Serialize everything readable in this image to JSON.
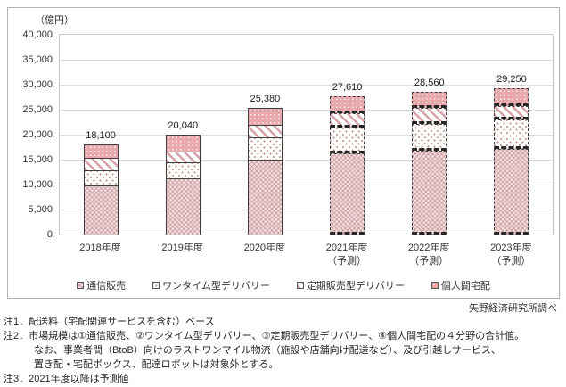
{
  "chart": {
    "unit_label": "（億円）",
    "source": "矢野経済研究所調べ"
  },
  "chart_data": {
    "type": "bar",
    "stacked": true,
    "title": "",
    "ylabel": "（億円）",
    "xlabel": "",
    "ylim": [
      0,
      40000
    ],
    "ytick_step": 5000,
    "ytick_labels": [
      "0",
      "5,000",
      "10,000",
      "15,000",
      "20,000",
      "25,000",
      "30,000",
      "35,000",
      "40,000"
    ],
    "grid": true,
    "legend_position": "bottom",
    "categories": [
      "2018年度",
      "2019年度",
      "2020年度",
      "2021年度",
      "2022年度",
      "2023年度"
    ],
    "category_sublabels": [
      "",
      "",
      "",
      "（予測）",
      "（予測）",
      "（予測）"
    ],
    "forecast": [
      false,
      false,
      false,
      true,
      true,
      true
    ],
    "series": [
      {
        "name": "通信販売",
        "pattern": "pink-crosshatch",
        "values": [
          9900,
          11200,
          15050,
          16250,
          16840,
          17200
        ]
      },
      {
        "name": "ワンタイム型デリバリー",
        "pattern": "dots-on-white",
        "values": [
          3000,
          3250,
          4450,
          5200,
          5360,
          5750
        ]
      },
      {
        "name": "定期販売型デリバリー",
        "pattern": "pink-diagonal-stripes",
        "values": [
          2400,
          2100,
          2400,
          2840,
          3160,
          2800
        ]
      },
      {
        "name": "個人間宅配",
        "pattern": "pink-with-white-dots",
        "values": [
          2800,
          3490,
          3480,
          3320,
          3200,
          3500
        ]
      }
    ],
    "totals": [
      18100,
      20040,
      25380,
      27610,
      28560,
      29250
    ],
    "total_labels": [
      "18,100",
      "20,040",
      "25,380",
      "27,610",
      "28,560",
      "29,250"
    ],
    "colors": {
      "segment_border": "#3f3f3f",
      "pink_fill": "#e9a8ac",
      "pattern_pink": "#d8a2a8",
      "gridline": "#dcdcdc",
      "frame_border": "#b3b3b3"
    }
  },
  "notes": [
    {
      "text": "注1．配送料（宅配関連サービスを含む）ベース",
      "indent": false
    },
    {
      "text": "注2．市場規模は①通信販売、②ワンタイム型デリバリー、③定期販売型デリバリー、④個人間宅配の４分野の合計値。",
      "indent": false
    },
    {
      "text": "なお、事業者間（BtoB）向けのラストワンマイル物流（施設や店舗向け配送など）、及び引越しサービス、",
      "indent": true
    },
    {
      "text": "置き配・宅配ボックス、配達ロボットは対象外とする。",
      "indent": true
    },
    {
      "text": "注3．2021年度以降は予測値",
      "indent": false
    }
  ]
}
